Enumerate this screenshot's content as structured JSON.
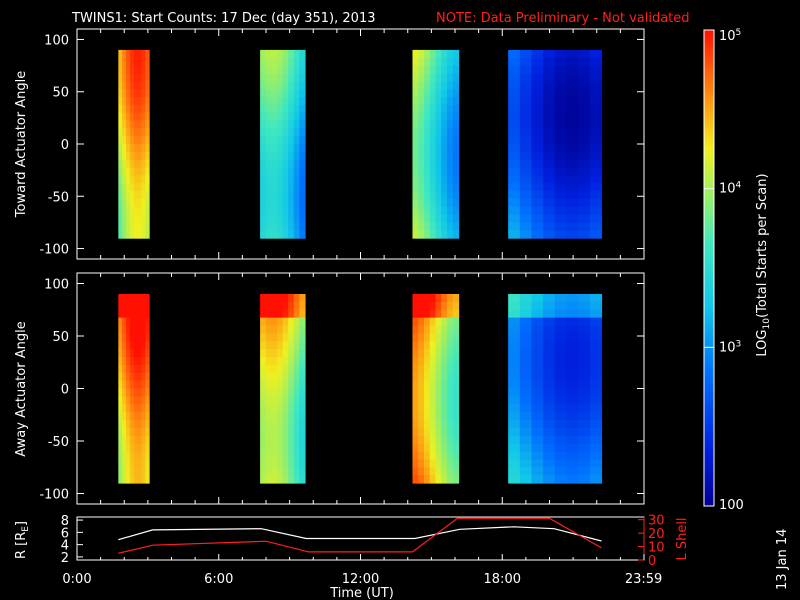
{
  "title_main": "TWINS1: Start Counts: 17 Dec (day 351), 2013",
  "title_note": "NOTE: Data Preliminary - Not validated",
  "datestamp": "13 Jan 14",
  "colors": {
    "note": "#ff2020",
    "r_line": "#ffffff",
    "lshell_line": "#ff2020"
  },
  "chart_data": [
    {
      "type": "heatmap",
      "ylabel": "Toward Actuator Angle",
      "ylim": [
        -110,
        110
      ],
      "yticks": [
        100,
        50,
        0,
        -50,
        -100
      ],
      "xlim": [
        0,
        24
      ],
      "blocks": [
        {
          "start": 1.75,
          "end": 3.05,
          "base_log": 4.1
        },
        {
          "start": 7.75,
          "end": 9.65,
          "base_log": 3.3
        },
        {
          "start": 14.2,
          "end": 16.15,
          "base_log": 3.7
        },
        {
          "start": 18.25,
          "end": 22.2,
          "base_log": 2.9
        }
      ]
    },
    {
      "type": "heatmap",
      "ylabel": "Away Actuator Angle",
      "ylim": [
        -110,
        110
      ],
      "yticks": [
        100,
        50,
        0,
        -50,
        -100
      ],
      "xlim": [
        0,
        24
      ],
      "blocks": [
        {
          "start": 1.75,
          "end": 3.05,
          "base_log": 4.3
        },
        {
          "start": 7.75,
          "end": 9.65,
          "base_log": 3.9
        },
        {
          "start": 14.2,
          "end": 16.15,
          "base_log": 4.4
        },
        {
          "start": 18.25,
          "end": 22.2,
          "base_log": 3.2
        }
      ]
    },
    {
      "type": "line",
      "ylabel_left": "R [R",
      "ylabel_left_sub": "E",
      "ylabel_right": "L Shell",
      "xlabel": "Time (UT)",
      "xlim": [
        0,
        24
      ],
      "xticks": [
        0,
        6,
        12,
        18,
        23.983
      ],
      "xtick_labels": [
        "0:00",
        "6:00",
        "12:00",
        "18:00",
        "23:59"
      ],
      "ylim_left": [
        1.5,
        8.5
      ],
      "yticks_left": [
        2,
        4,
        6,
        8
      ],
      "ylim_right": [
        0,
        32
      ],
      "yticks_right": [
        0,
        10,
        20,
        30
      ],
      "series": [
        {
          "axis": "left",
          "x": [
            1.75,
            3.2,
            7.8,
            9.7,
            14.3,
            16.2,
            18.5,
            20.2,
            22.2
          ],
          "y": [
            4.8,
            6.4,
            6.6,
            5.0,
            5.0,
            6.5,
            6.9,
            6.6,
            4.6
          ]
        },
        {
          "axis": "right",
          "x": [
            1.75,
            3.2,
            8.0,
            9.8,
            14.2,
            16.1,
            20.0,
            22.2
          ],
          "y": [
            5,
            11,
            14,
            6,
            6,
            31,
            31,
            9
          ]
        }
      ]
    }
  ],
  "colorbar": {
    "label": "LOG",
    "label_sub": "10",
    "label_rest": "(Total Starts per Scan)",
    "range_log": [
      2,
      5
    ],
    "tick_labels": [
      "10",
      "10",
      "10",
      "100"
    ],
    "tick_sups": [
      "5",
      "4",
      "3",
      ""
    ],
    "tick_logs": [
      5,
      4,
      3,
      2
    ]
  }
}
